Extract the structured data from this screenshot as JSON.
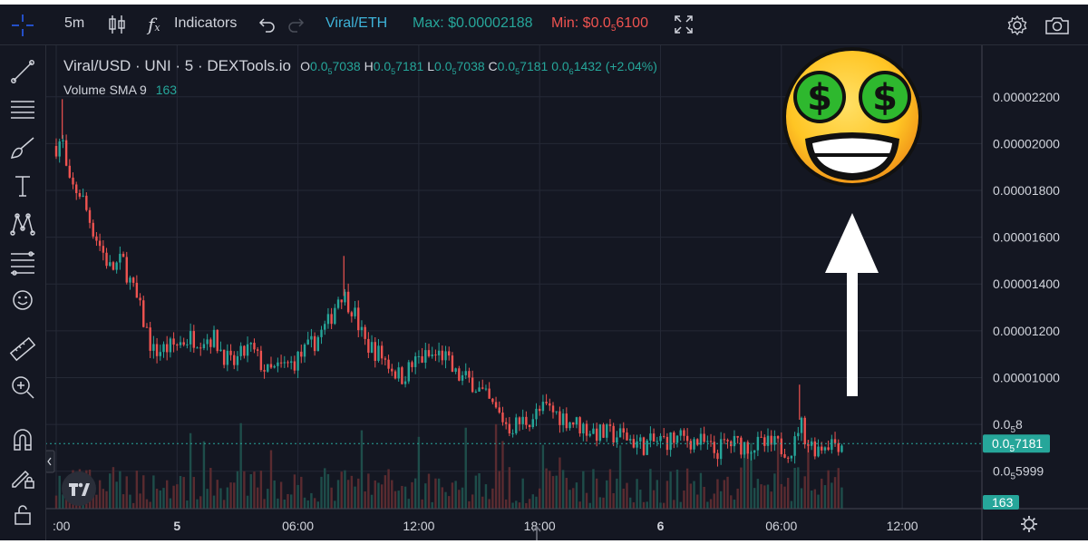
{
  "toolbar": {
    "interval": "5m",
    "indicators_label": "Indicators",
    "pair_label": "Viral/ETH",
    "max_label": "Max: $0.00002188",
    "min_label": "Min: $0.0",
    "min_sub": "5",
    "min_rest": "6100"
  },
  "legend": {
    "symbol": "Viral/USD · UNI · 5 · DEXTools.io",
    "o_key": "O",
    "o_pre": "0.0",
    "o_sub": "5",
    "o_rest": "7038",
    "h_key": "H",
    "h_pre": "0.0",
    "h_sub": "5",
    "h_rest": "7181",
    "l_key": "L",
    "l_pre": "0.0",
    "l_sub": "5",
    "l_rest": "7038",
    "c_key": "C",
    "c_pre": "0.0",
    "c_sub": "5",
    "c_rest": "7181",
    "chg_pre": "0.0",
    "chg_sub": "6",
    "chg_rest": "1432 (+2.04%)",
    "volume_label": "Volume SMA 9",
    "volume_value": "163"
  },
  "colors": {
    "background": "#141722",
    "up": "#26a69a",
    "down": "#ef5350",
    "up_volume": "#1e4d4a",
    "down_volume": "#5a2b30",
    "grid": "#252936",
    "text": "#d1d4dc",
    "accent": "#2962ff",
    "price_line": "#26a69a"
  },
  "chart_data": {
    "type": "candlestick",
    "price_axis": {
      "ticks": [
        {
          "value": 2.2e-05,
          "label": "0.00002200"
        },
        {
          "value": 2e-05,
          "label": "0.00002000"
        },
        {
          "value": 1.8e-05,
          "label": "0.00001800"
        },
        {
          "value": 1.6e-05,
          "label": "0.00001600"
        },
        {
          "value": 1.4e-05,
          "label": "0.00001400"
        },
        {
          "value": 1.2e-05,
          "label": "0.00001200"
        },
        {
          "value": 1e-05,
          "label": "0.00001000"
        },
        {
          "value": 8e-06,
          "label": "0.0",
          "sub": "5",
          "rest": "8"
        },
        {
          "value": 5.999e-06,
          "label": "0.0",
          "sub": "5",
          "rest": "5999"
        }
      ],
      "ylim": [
        4.4e-06,
        2.42e-05
      ]
    },
    "last_price": {
      "value": 7.181e-06,
      "label": "0.0",
      "sub": "5",
      "rest": "7181"
    },
    "volume_badge": "163",
    "time_axis": {
      "ticks": [
        {
          "t": 0,
          "label": ":00",
          "bold": false
        },
        {
          "t": 1.0,
          "label": "5",
          "bold": true
        },
        {
          "t": 2.0,
          "label": "06:00",
          "bold": false
        },
        {
          "t": 3.0,
          "label": "12:00",
          "bold": false
        },
        {
          "t": 4.0,
          "label": "18:00",
          "bold": false
        },
        {
          "t": 5.0,
          "label": "6",
          "bold": true
        },
        {
          "t": 6.0,
          "label": "06:00",
          "bold": false
        },
        {
          "t": 7.0,
          "label": "12:00",
          "bold": false
        }
      ]
    },
    "path": [
      [
        0.0,
        1.99e-05
      ],
      [
        0.05,
        2.02e-05
      ],
      [
        0.1,
        1.82e-05
      ],
      [
        0.2,
        1.79e-05
      ],
      [
        0.3,
        1.64e-05
      ],
      [
        0.45,
        1.46e-05
      ],
      [
        0.55,
        1.5e-05
      ],
      [
        0.7,
        1.28e-05
      ],
      [
        0.8,
        1.11e-05
      ],
      [
        0.95,
        1.13e-05
      ],
      [
        1.1,
        1.17e-05
      ],
      [
        1.3,
        1.17e-05
      ],
      [
        1.45,
        1.05e-05
      ],
      [
        1.6,
        1.13e-05
      ],
      [
        1.75,
        1.02e-05
      ],
      [
        1.95,
        1.06e-05
      ],
      [
        2.1,
        1.13e-05
      ],
      [
        2.25,
        1.23e-05
      ],
      [
        2.35,
        1.37e-05
      ],
      [
        2.45,
        1.3e-05
      ],
      [
        2.55,
        1.15e-05
      ],
      [
        2.7,
        1.09e-05
      ],
      [
        2.85,
        1e-05
      ],
      [
        3.0,
        1.08e-05
      ],
      [
        3.2,
        1.1e-05
      ],
      [
        3.3,
        1.01e-05
      ],
      [
        3.45,
        9.8e-06
      ],
      [
        3.6,
        8.8e-06
      ],
      [
        3.75,
        7.9e-06
      ],
      [
        3.9,
        8.2e-06
      ],
      [
        4.05,
        8.7e-06
      ],
      [
        4.2,
        8.3e-06
      ],
      [
        4.35,
        7.9e-06
      ],
      [
        4.5,
        7.6e-06
      ],
      [
        4.7,
        7.5e-06
      ],
      [
        4.85,
        7.1e-06
      ],
      [
        5.0,
        7.3e-06
      ],
      [
        5.2,
        7.4e-06
      ],
      [
        5.35,
        7.2e-06
      ],
      [
        5.45,
        6.8e-06
      ],
      [
        5.55,
        7.2e-06
      ],
      [
        5.75,
        7.1e-06
      ],
      [
        5.95,
        7.1e-06
      ],
      [
        6.1,
        6.9e-06
      ],
      [
        6.15,
        8.2e-06
      ],
      [
        6.22,
        7.2e-06
      ],
      [
        6.3,
        7e-06
      ],
      [
        6.4,
        7.3e-06
      ],
      [
        6.5,
        7.2e-06
      ]
    ],
    "end_t": 6.5
  }
}
